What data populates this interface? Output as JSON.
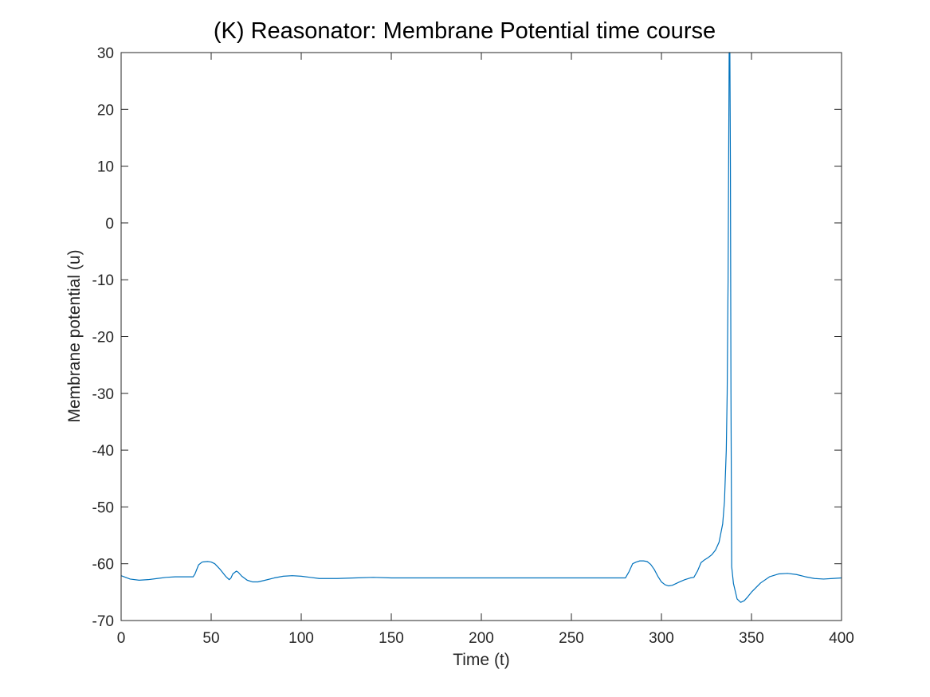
{
  "chart_data": {
    "type": "line",
    "title": "(K) Reasonator: Membrane Potential time course",
    "xlabel": "Time (t)",
    "ylabel": "Membrane potential (u)",
    "xlim": [
      0,
      400
    ],
    "ylim": [
      -70,
      30
    ],
    "xticks": [
      "0",
      "50",
      "100",
      "150",
      "200",
      "250",
      "300",
      "350",
      "400"
    ],
    "yticks": [
      "30",
      "20",
      "10",
      "0",
      "-10",
      "-20",
      "-30",
      "-40",
      "-50",
      "-60",
      "-70"
    ],
    "grid": false,
    "box": true,
    "series": [
      {
        "color": "#0072BD",
        "x": [
          0,
          5,
          10,
          15,
          20,
          25,
          30,
          35,
          40,
          41,
          43,
          45,
          48,
          50,
          52,
          55,
          58,
          60,
          61,
          62,
          64,
          65,
          67,
          70,
          73,
          76,
          80,
          85,
          90,
          95,
          100,
          105,
          110,
          115,
          120,
          130,
          140,
          150,
          175,
          200,
          225,
          250,
          270,
          280,
          282,
          284,
          286,
          288,
          290,
          292,
          294,
          296,
          298,
          300,
          302,
          304,
          306,
          308,
          310,
          313,
          316,
          318,
          320,
          322,
          324,
          326,
          328,
          330,
          332,
          334,
          335,
          336,
          336.5,
          337,
          337.3,
          337.6,
          338,
          338.3,
          338.6,
          339,
          340,
          342,
          344,
          346,
          348,
          350,
          355,
          360,
          365,
          370,
          375,
          380,
          385,
          390,
          395,
          400
        ],
        "y": [
          -62.1,
          -62.7,
          -62.9,
          -62.8,
          -62.6,
          -62.4,
          -62.3,
          -62.3,
          -62.3,
          -61.8,
          -60.2,
          -59.7,
          -59.6,
          -59.7,
          -60.0,
          -61.0,
          -62.2,
          -62.8,
          -62.5,
          -61.8,
          -61.3,
          -61.5,
          -62.2,
          -62.9,
          -63.2,
          -63.2,
          -62.9,
          -62.5,
          -62.2,
          -62.1,
          -62.2,
          -62.4,
          -62.6,
          -62.6,
          -62.6,
          -62.5,
          -62.4,
          -62.5,
          -62.5,
          -62.5,
          -62.5,
          -62.5,
          -62.5,
          -62.5,
          -61.4,
          -60.0,
          -59.7,
          -59.5,
          -59.5,
          -59.6,
          -60.1,
          -61.0,
          -62.2,
          -63.2,
          -63.7,
          -63.9,
          -63.8,
          -63.5,
          -63.2,
          -62.8,
          -62.5,
          -62.4,
          -61.3,
          -59.8,
          -59.3,
          -58.9,
          -58.4,
          -57.6,
          -56.2,
          -53.0,
          -49.0,
          -40.0,
          -30.0,
          -10.0,
          10.0,
          30.0,
          30.0,
          10.0,
          -30.0,
          -60.5,
          -63.5,
          -66.2,
          -66.8,
          -66.5,
          -65.8,
          -65.0,
          -63.4,
          -62.3,
          -61.8,
          -61.7,
          -61.9,
          -62.3,
          -62.6,
          -62.7,
          -62.6,
          -62.5
        ]
      }
    ]
  }
}
